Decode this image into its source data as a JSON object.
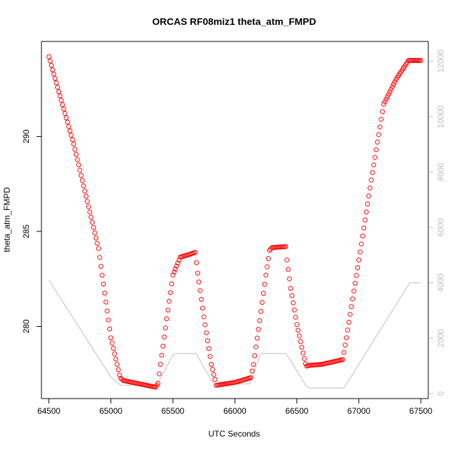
{
  "chart_data": {
    "type": "scatter",
    "title": "ORCAS RF08miz1 theta_atm_FMPD",
    "xlabel": "UTC Seconds",
    "ylabel": "theta_atm_FMPD",
    "xlim": [
      64440,
      67560
    ],
    "ylim": [
      276.2,
      295.0
    ],
    "y2lim": [
      -180,
      12720
    ],
    "x_ticks": [
      64500,
      65000,
      65500,
      66000,
      66500,
      67000,
      67500
    ],
    "y_ticks": [
      280,
      285,
      290
    ],
    "y2_ticks": [
      0,
      2000,
      4000,
      6000,
      8000,
      10000,
      12000
    ],
    "colors": {
      "points": "#ff0000",
      "altitude": "#bdbdbd",
      "axis": "#000000"
    },
    "series": [
      {
        "marker": "open-circle",
        "points": [
          [
            64500,
            294.2
          ],
          [
            64700,
            289.6
          ],
          [
            64900,
            284.1
          ],
          [
            65000,
            279.4
          ],
          [
            65075,
            277.3
          ],
          [
            65100,
            277.15
          ],
          [
            65360,
            276.8
          ],
          [
            65380,
            277.0
          ],
          [
            65400,
            278.0
          ],
          [
            65450,
            280.4
          ],
          [
            65500,
            282.7
          ],
          [
            65560,
            283.65
          ],
          [
            65640,
            283.8
          ],
          [
            65680,
            283.9
          ],
          [
            65700,
            282.8
          ],
          [
            65750,
            280.5
          ],
          [
            65810,
            278.0
          ],
          [
            65840,
            277.2
          ],
          [
            65850,
            276.9
          ],
          [
            66000,
            277.05
          ],
          [
            66130,
            277.3
          ],
          [
            66150,
            278.0
          ],
          [
            66200,
            280.3
          ],
          [
            66250,
            282.7
          ],
          [
            66280,
            284.0
          ],
          [
            66300,
            284.15
          ],
          [
            66410,
            284.2
          ],
          [
            66420,
            283.5
          ],
          [
            66450,
            282.0
          ],
          [
            66500,
            280.1
          ],
          [
            66560,
            278.3
          ],
          [
            66575,
            277.9
          ],
          [
            66600,
            277.95
          ],
          [
            66700,
            278.0
          ],
          [
            66870,
            278.25
          ],
          [
            66900,
            279.4
          ],
          [
            67000,
            283.5
          ],
          [
            67100,
            287.7
          ],
          [
            67200,
            291.7
          ],
          [
            67300,
            293.0
          ],
          [
            67400,
            294.0
          ],
          [
            67500,
            294.0
          ]
        ]
      },
      {
        "marker": "line",
        "axis": "right",
        "points": [
          [
            64500,
            4100
          ],
          [
            65000,
            600
          ],
          [
            65080,
            300
          ],
          [
            65370,
            300
          ],
          [
            65500,
            1400
          ],
          [
            65540,
            1450
          ],
          [
            65690,
            1450
          ],
          [
            65730,
            1100
          ],
          [
            65830,
            350
          ],
          [
            66120,
            350
          ],
          [
            66210,
            1450
          ],
          [
            66330,
            1450
          ],
          [
            66410,
            1450
          ],
          [
            66450,
            1200
          ],
          [
            66570,
            300
          ],
          [
            66600,
            200
          ],
          [
            66880,
            200
          ],
          [
            67410,
            4000
          ],
          [
            67500,
            4000
          ]
        ]
      }
    ]
  }
}
